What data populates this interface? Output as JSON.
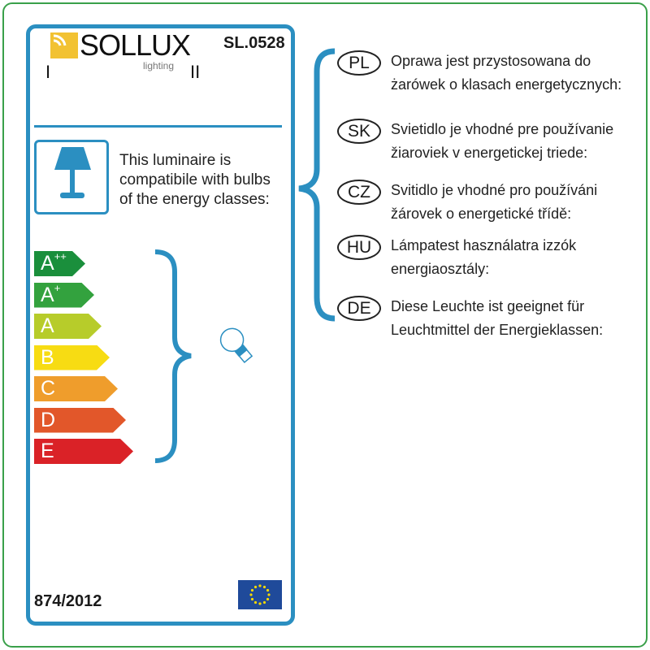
{
  "brand": {
    "name": "SOLLUX",
    "tagline": "lighting",
    "colors": {
      "logo": "#f2c232"
    }
  },
  "model": "SL.0528",
  "marks": {
    "left": "I",
    "right": "II"
  },
  "compatibility_text": [
    "This luminaire is",
    "compatibile with bulbs",
    "of the energy classes:"
  ],
  "energy_classes": [
    {
      "label": "A",
      "sup": "++",
      "color": "#1a8f3c"
    },
    {
      "label": "A",
      "sup": "+",
      "color": "#33a23e"
    },
    {
      "label": "A",
      "sup": "",
      "color": "#b7cc2a"
    },
    {
      "label": "B",
      "sup": "",
      "color": "#f7dc13"
    },
    {
      "label": "C",
      "sup": "",
      "color": "#ef9d2c"
    },
    {
      "label": "D",
      "sup": "",
      "color": "#e2572a"
    },
    {
      "label": "E",
      "sup": "",
      "color": "#da2227"
    }
  ],
  "regulation": "874/2012",
  "accent": "#2b8fc1",
  "languages": [
    {
      "code": "PL",
      "lines": [
        "Oprawa jest przystosowana do",
        "żarówek o klasach energetycznych:"
      ]
    },
    {
      "code": "SK",
      "lines": [
        "Svietidlo je vhodné pre používanie",
        "žiaroviek v energetickej triede:"
      ]
    },
    {
      "code": "CZ",
      "lines": [
        "Svitidlo je vhodné pro používáni",
        "žárovek o energetické třídě:"
      ]
    },
    {
      "code": "HU",
      "lines": [
        "Lámpatest használatra izzók",
        "energiaosztály:"
      ]
    },
    {
      "code": "DE",
      "lines": [
        "Diese Leuchte ist geeignet für",
        "Leuchtmittel der Energieklassen:"
      ]
    }
  ]
}
